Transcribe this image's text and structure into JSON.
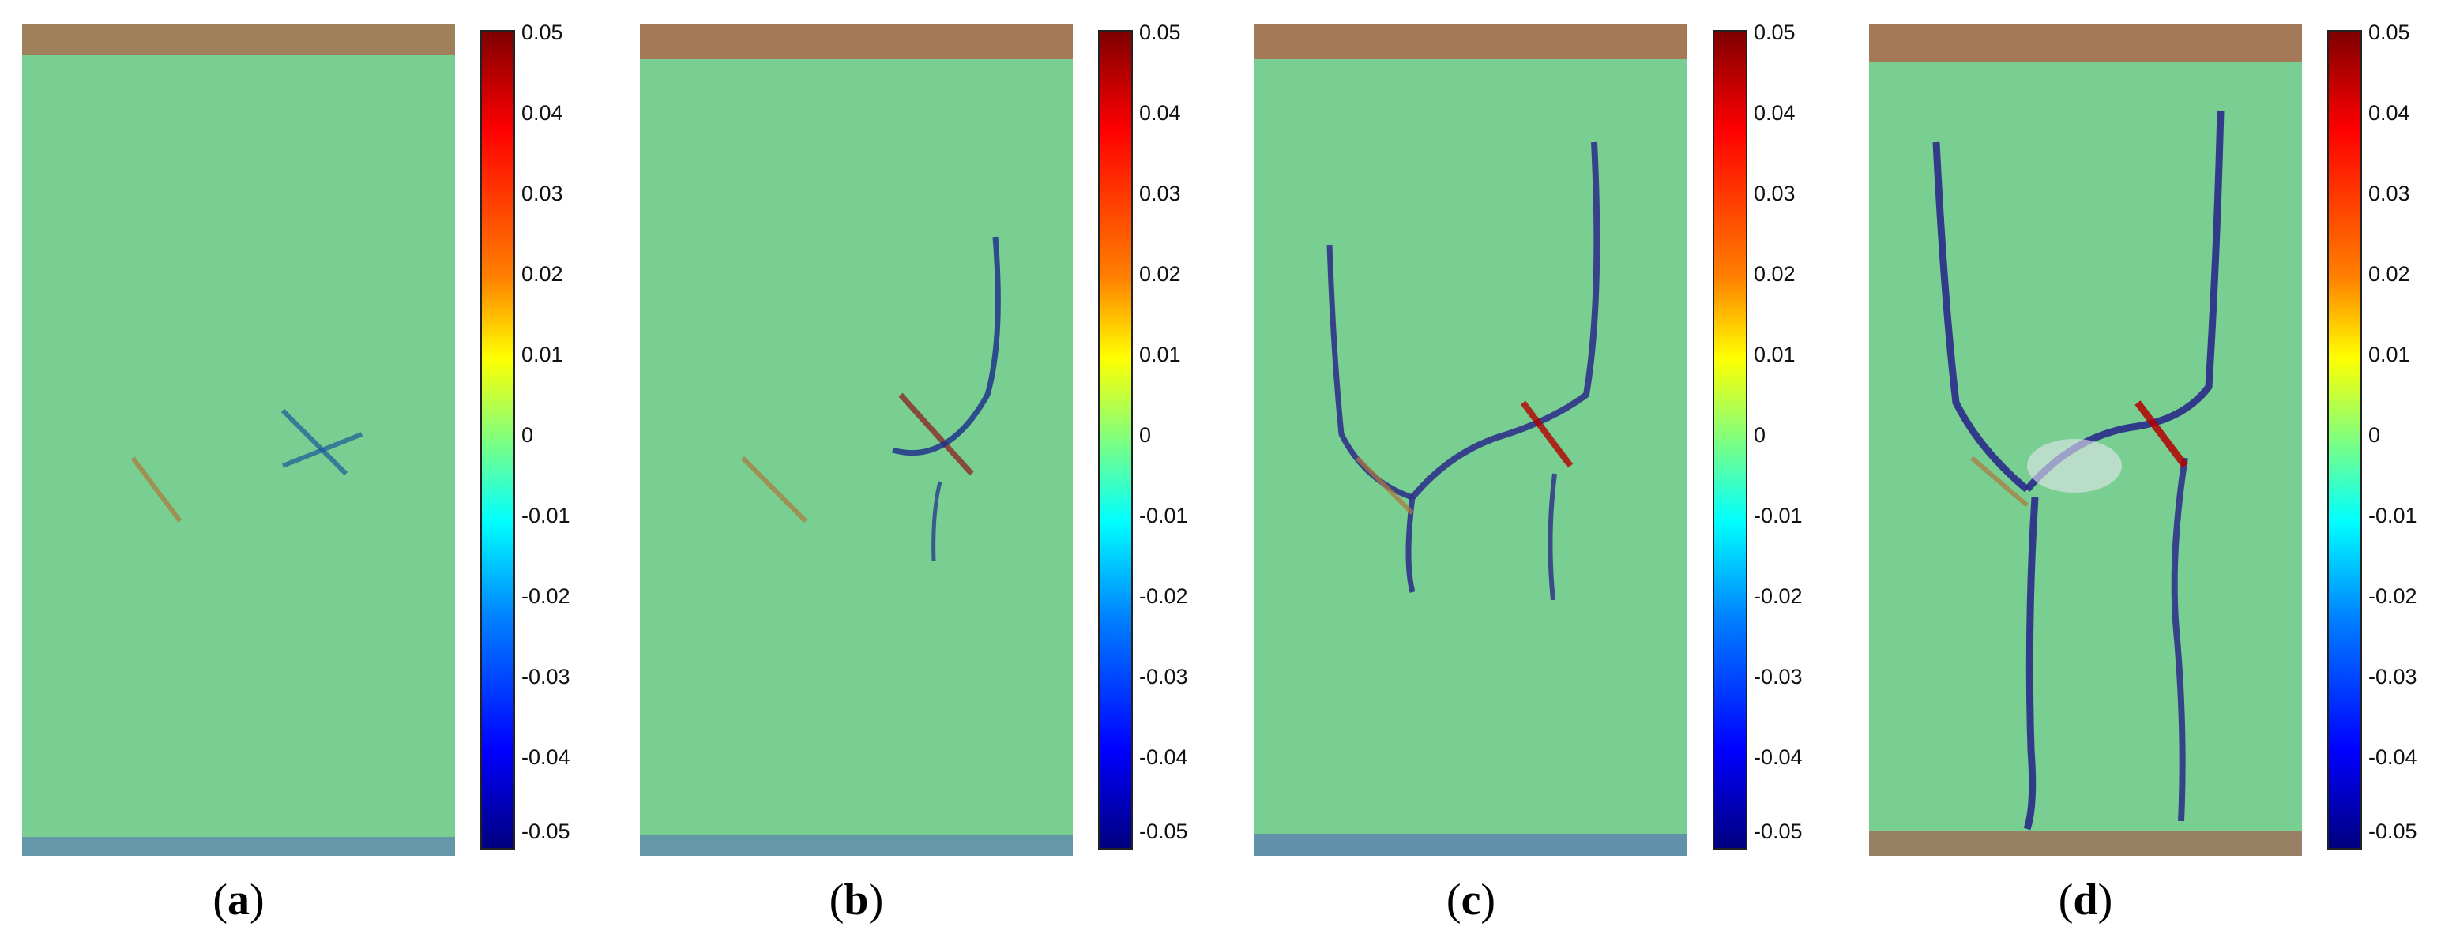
{
  "figure": {
    "panels": [
      {
        "label": "a",
        "open": "(",
        "close": ")"
      },
      {
        "label": "b",
        "open": "(",
        "close": ")"
      },
      {
        "label": "c",
        "open": "(",
        "close": ")"
      },
      {
        "label": "d",
        "open": "(",
        "close": ")"
      }
    ],
    "colorbar": {
      "ticks": [
        "0.05",
        "0.04",
        "0.03",
        "0.02",
        "0.01",
        "0",
        "-0.01",
        "-0.02",
        "-0.03",
        "-0.04",
        "-0.05"
      ],
      "colors": [
        "#7f0000",
        "#ff0000",
        "#ff7f00",
        "#ffff00",
        "#7fff7f",
        "#00ffff",
        "#007fff",
        "#0000ff",
        "#00007f"
      ]
    },
    "field": {
      "background": "#78cf91",
      "crack_colors": [
        "#00007f",
        "#b40000",
        "#e6e6f0"
      ]
    }
  }
}
